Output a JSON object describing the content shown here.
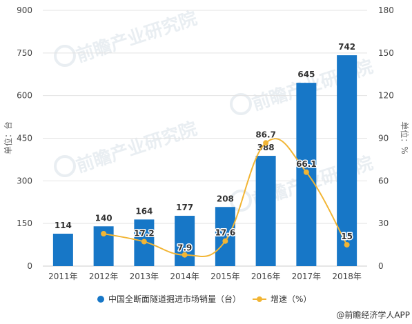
{
  "chart_data": {
    "type": "bar",
    "categories": [
      "2011年",
      "2012年",
      "2013年",
      "2014年",
      "2015年",
      "2016年",
      "2017年",
      "2018年"
    ],
    "series": [
      {
        "name": "中国全断面隧道掘进市场销量（台）",
        "type": "bar",
        "axis": "left",
        "values": [
          114,
          140,
          164,
          177,
          208,
          388,
          645,
          742
        ],
        "labels": [
          "114",
          "140",
          "164",
          "177",
          "208",
          "388",
          "645",
          "742"
        ]
      },
      {
        "name": "增速（%）",
        "type": "line",
        "axis": "right",
        "values": [
          null,
          22.8,
          17.2,
          7.9,
          17.6,
          86.7,
          66.1,
          15
        ],
        "labels": [
          "",
          "",
          "17.2",
          "7.9",
          "17.6",
          "86.7",
          "66.1",
          "15"
        ]
      }
    ],
    "ylabel": "单位：台",
    "y2label": "单位：%",
    "ylim": [
      0,
      900
    ],
    "yticks": [
      "0",
      "150",
      "300",
      "450",
      "600",
      "750",
      "900"
    ],
    "y2lim": [
      0,
      180
    ],
    "y2ticks": [
      "0",
      "30",
      "60",
      "90",
      "120",
      "150",
      "180"
    ],
    "grid": true,
    "legend_position": "bottom"
  },
  "colors": {
    "bar": "#1777c7",
    "line": "#f2b534",
    "grid": "#e3e3e3"
  },
  "watermark_text": "前瞻产业研究院",
  "source_text": "@前瞻经济学人APP"
}
